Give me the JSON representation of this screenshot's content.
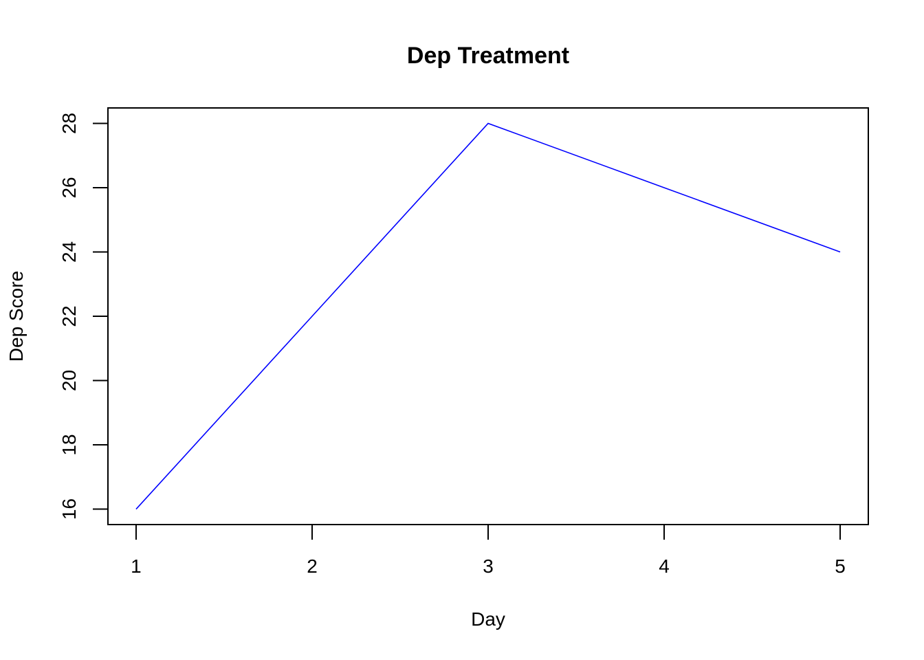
{
  "chart_data": {
    "type": "line",
    "title": "Dep Treatment",
    "xlabel": "Day",
    "ylabel": "Dep Score",
    "x": [
      1,
      2,
      3,
      4,
      5
    ],
    "series": [
      {
        "values": [
          16,
          22,
          28,
          26,
          24
        ],
        "color": "#0000ff"
      }
    ],
    "xlim": [
      0.84,
      5.16
    ],
    "ylim": [
      15.52,
      28.48
    ],
    "xticks": [
      1,
      2,
      3,
      4,
      5
    ],
    "yticks": [
      16,
      18,
      20,
      22,
      24,
      26,
      28
    ],
    "grid": false,
    "legend": "none"
  }
}
